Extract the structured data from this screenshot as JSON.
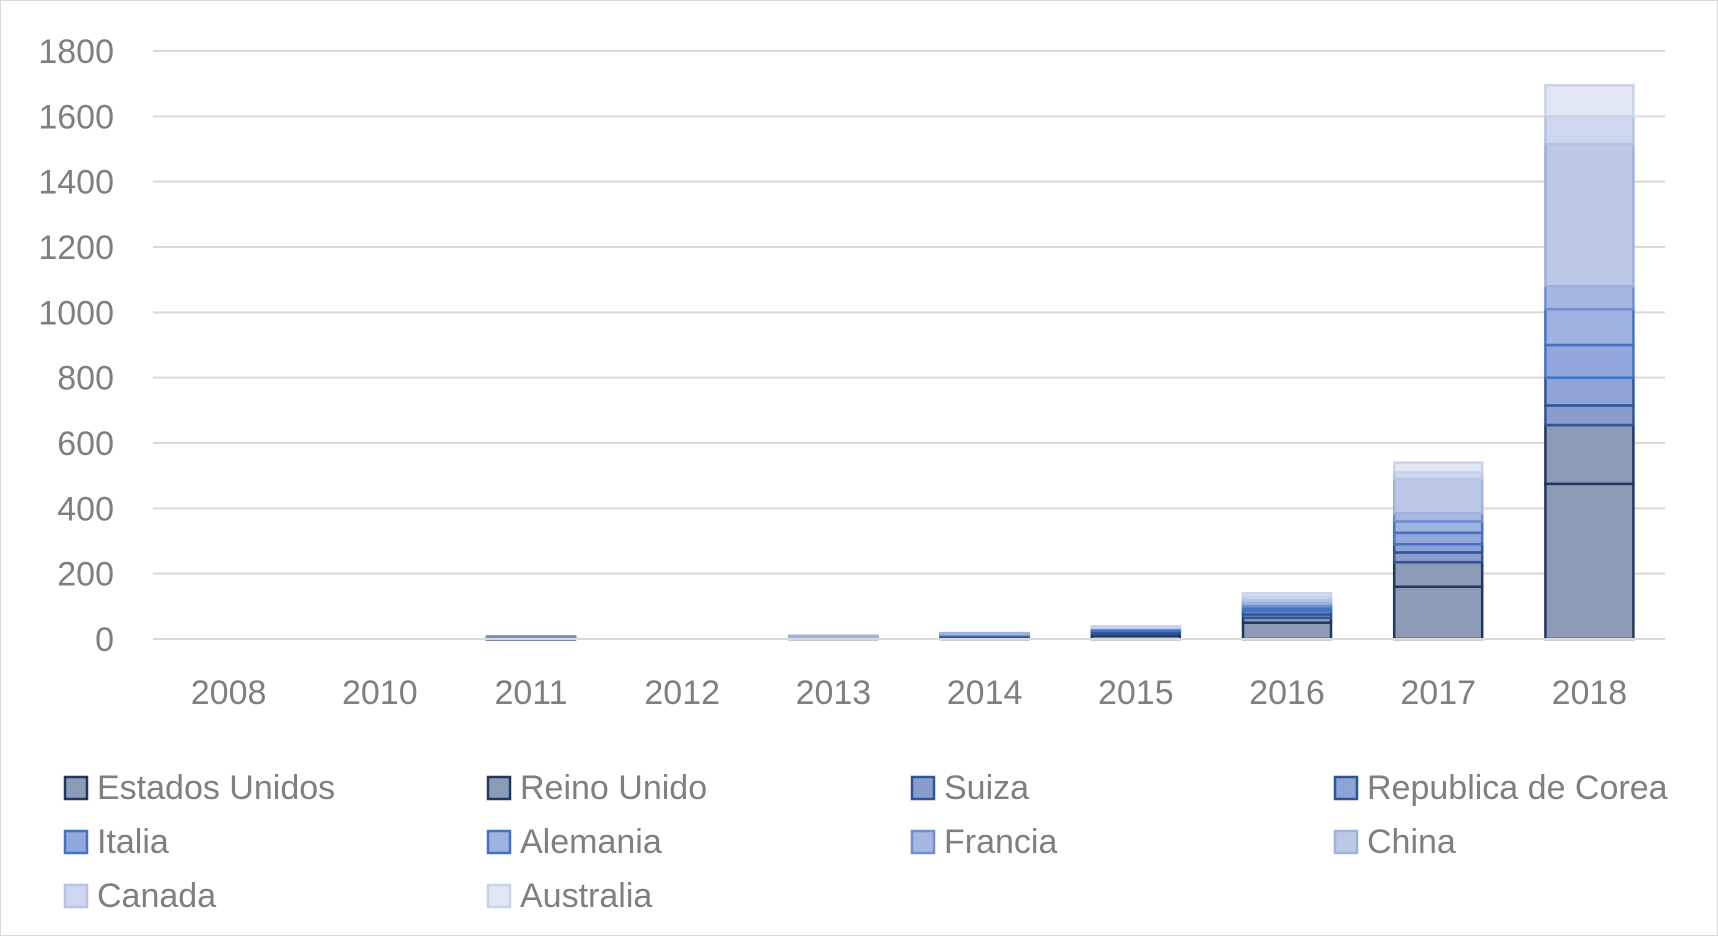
{
  "chart_data": {
    "type": "bar",
    "stacked": true,
    "title": "",
    "xlabel": "",
    "ylabel": "",
    "ylim": [
      0,
      1800
    ],
    "yticks": [
      0,
      200,
      400,
      600,
      800,
      1000,
      1200,
      1400,
      1600,
      1800
    ],
    "grid": true,
    "legend_position": "bottom",
    "categories": [
      "2008",
      "2010",
      "2011",
      "2012",
      "2013",
      "2014",
      "2015",
      "2016",
      "2017",
      "2018"
    ],
    "series": [
      {
        "name": "Estados Unidos",
        "color": "#8d9bb6",
        "stroke": "#203864",
        "values": [
          0,
          0,
          2,
          0,
          3,
          5,
          10,
          50,
          160,
          475
        ]
      },
      {
        "name": "Reino Unido",
        "color": "#8d9bb6",
        "stroke": "#203864",
        "values": [
          0,
          0,
          1,
          0,
          1,
          3,
          5,
          15,
          75,
          180
        ]
      },
      {
        "name": "Suiza",
        "color": "#8a9ccc",
        "stroke": "#2f5597",
        "values": [
          0,
          0,
          1,
          0,
          1,
          2,
          5,
          10,
          30,
          60
        ]
      },
      {
        "name": "Republica de Corea",
        "color": "#8ea3d6",
        "stroke": "#2f5597",
        "values": [
          0,
          0,
          1,
          0,
          1,
          2,
          5,
          10,
          25,
          85
        ]
      },
      {
        "name": "Italia",
        "color": "#92a8dc",
        "stroke": "#4472c4",
        "values": [
          0,
          0,
          1,
          0,
          1,
          2,
          4,
          8,
          35,
          100
        ]
      },
      {
        "name": "Alemania",
        "color": "#9fb3e0",
        "stroke": "#4472c4",
        "values": [
          0,
          0,
          1,
          0,
          1,
          2,
          3,
          7,
          35,
          110
        ]
      },
      {
        "name": "Francia",
        "color": "#a7b8e0",
        "stroke": "#6f8fd0",
        "values": [
          0,
          0,
          1,
          0,
          1,
          1,
          3,
          10,
          25,
          70
        ]
      },
      {
        "name": "China",
        "color": "#bcc8e6",
        "stroke": "#9eb2de",
        "values": [
          0,
          0,
          0,
          0,
          1,
          1,
          2,
          10,
          105,
          435
        ]
      },
      {
        "name": "Canada",
        "color": "#cfd7ee",
        "stroke": "#b4c3e6",
        "values": [
          0,
          0,
          0,
          0,
          0,
          0,
          1,
          10,
          20,
          85
        ]
      },
      {
        "name": "Australia",
        "color": "#e2e7f4",
        "stroke": "#c9d3ec",
        "values": [
          0,
          0,
          0,
          0,
          0,
          0,
          1,
          10,
          30,
          95
        ]
      }
    ]
  }
}
